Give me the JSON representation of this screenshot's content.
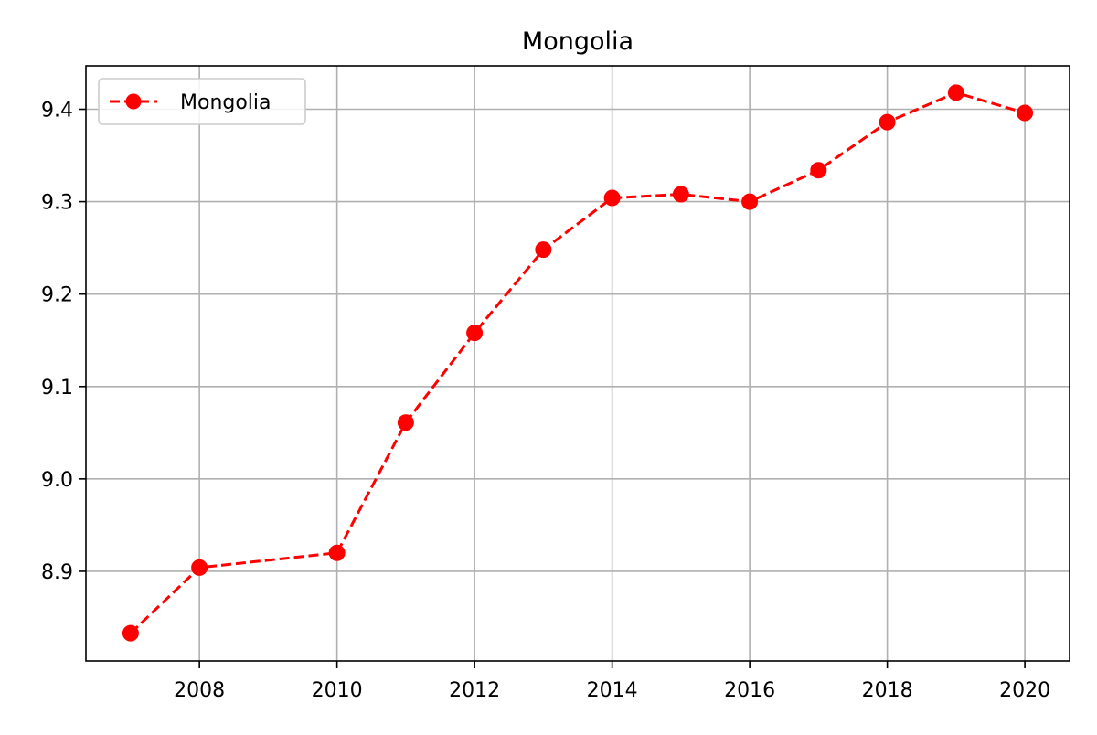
{
  "chart_data": {
    "type": "line",
    "title": "Mongolia",
    "xlabel": "",
    "ylabel": "",
    "x": [
      2007,
      2008,
      2010,
      2011,
      2012,
      2013,
      2014,
      2015,
      2016,
      2017,
      2018,
      2019,
      2020
    ],
    "series": [
      {
        "name": "Mongolia",
        "color": "#ff0000",
        "line_style": "dashed",
        "marker": "circle",
        "values": [
          8.833,
          8.904,
          8.92,
          9.061,
          9.158,
          9.248,
          9.304,
          9.308,
          9.3,
          9.334,
          9.386,
          9.418,
          9.396
        ]
      }
    ],
    "xlim": [
      2006.35,
      2020.65
    ],
    "ylim": [
      8.803,
      9.447
    ],
    "xticks": [
      2008,
      2010,
      2012,
      2014,
      2016,
      2018,
      2020
    ],
    "yticks": [
      8.9,
      9.0,
      9.1,
      9.2,
      9.3,
      9.4
    ],
    "ytick_labels": [
      "8.9",
      "9.0",
      "9.1",
      "9.2",
      "9.3",
      "9.4"
    ],
    "grid": true,
    "legend_position": "upper-left"
  }
}
